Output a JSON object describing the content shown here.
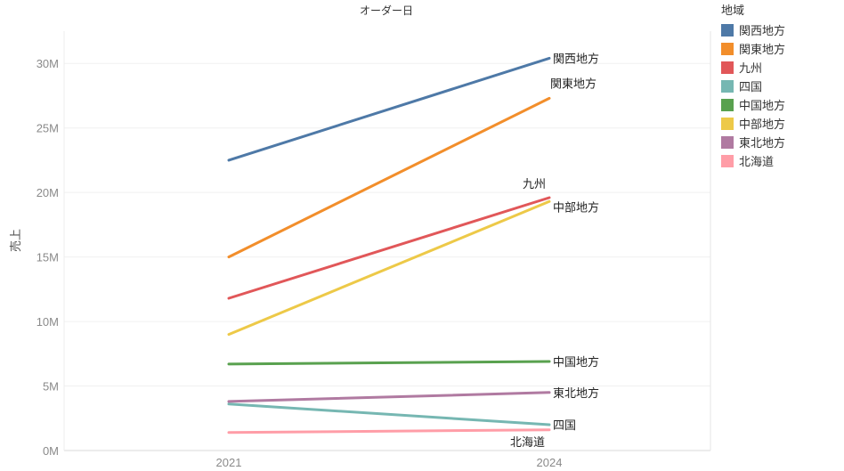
{
  "chart_data": {
    "type": "line",
    "title": "オーダー日",
    "xlabel": "",
    "ylabel": "売上",
    "x": [
      "2021",
      "2024"
    ],
    "ylim": [
      0,
      32500000
    ],
    "yticks": [
      0,
      5000000,
      10000000,
      15000000,
      20000000,
      25000000,
      30000000
    ],
    "ytick_labels": [
      "0M",
      "5M",
      "10M",
      "15M",
      "20M",
      "25M",
      "30M"
    ],
    "grid": true,
    "legend": {
      "title": "地域",
      "position": "right"
    },
    "series": [
      {
        "name": "関西地方",
        "color": "#4e79a7",
        "values": [
          22500000,
          30400000
        ]
      },
      {
        "name": "関東地方",
        "color": "#f28e2b",
        "values": [
          15000000,
          27300000
        ]
      },
      {
        "name": "九州",
        "color": "#e15759",
        "values": [
          11800000,
          19600000
        ]
      },
      {
        "name": "四国",
        "color": "#76b7b2",
        "values": [
          3600000,
          2000000
        ]
      },
      {
        "name": "中国地方",
        "color": "#59a14f",
        "values": [
          6700000,
          6900000
        ]
      },
      {
        "name": "中部地方",
        "color": "#edc948",
        "values": [
          9000000,
          19300000
        ]
      },
      {
        "name": "東北地方",
        "color": "#b07aa1",
        "values": [
          3800000,
          4500000
        ]
      },
      {
        "name": "北海道",
        "color": "#ff9da7",
        "values": [
          1400000,
          1600000
        ]
      }
    ]
  }
}
